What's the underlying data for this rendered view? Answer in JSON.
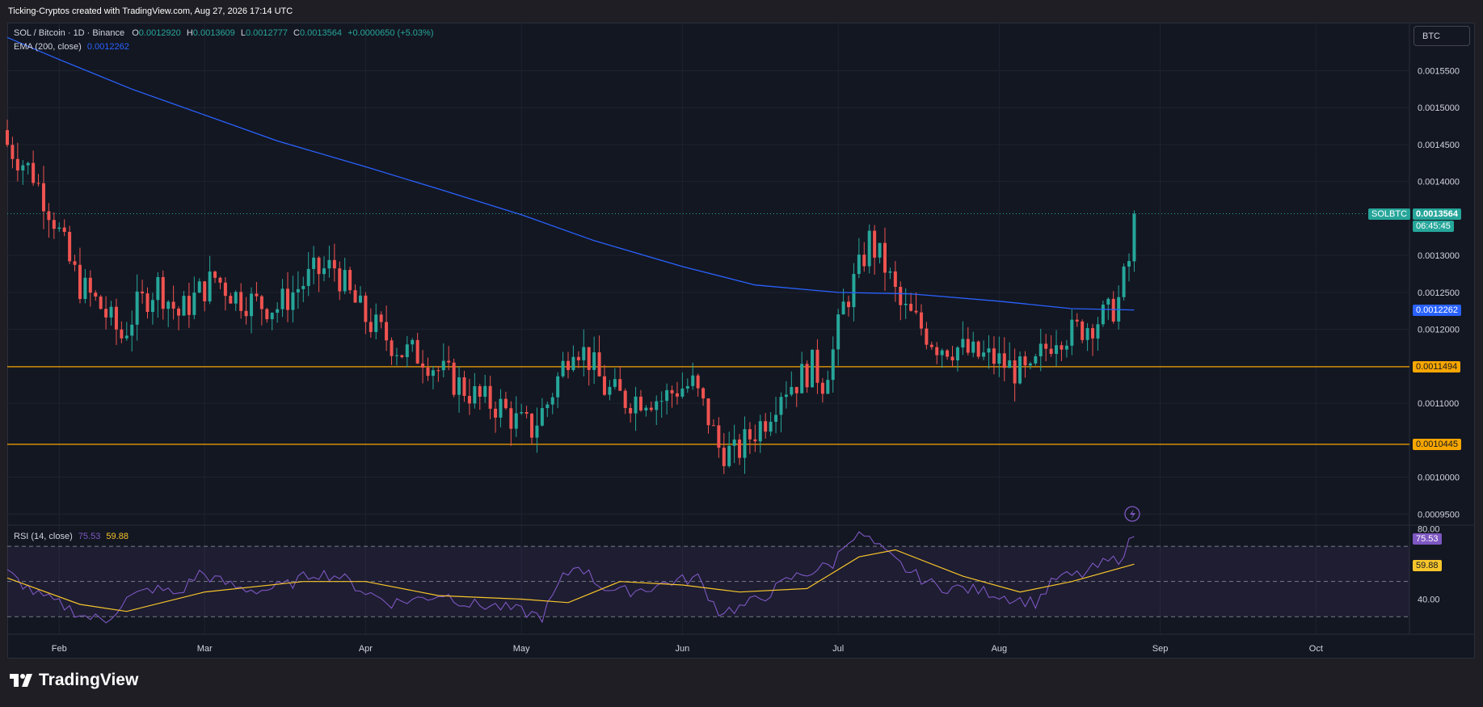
{
  "header": {
    "credit": "Ticking-Cryptos created with TradingView.com, Aug 27, 2026 17:14 UTC"
  },
  "legend": {
    "symbol": "SOL / Bitcoin · 1D · Binance",
    "o_label": "O",
    "o": "0.0012920",
    "h_label": "H",
    "h": "0.0013609",
    "l_label": "L",
    "l": "0.0012777",
    "c_label": "C",
    "c": "0.0013564",
    "change": "+0.0000650 (+5.03%)",
    "ema_label": "EMA (200, close)",
    "ema_value": "0.0012262",
    "rsi_label": "RSI (14, close)",
    "rsi_value": "75.53",
    "rsi_ma_value": "59.88"
  },
  "currency_button": "BTC",
  "brand": "TradingView",
  "tags": {
    "symbol": "SOLBTC",
    "price": "0.0013564",
    "countdown": "06:45:45",
    "ema": "0.0012262",
    "level_upper": "0.0011494",
    "level_lower": "0.0010445",
    "rsi": "75.53",
    "rsi_ma": "59.88"
  },
  "colors": {
    "up": "#26a69a",
    "down": "#ef5350",
    "ema": "#2962ff",
    "level": "#f7a600",
    "rsi": "#7e57c2",
    "rsi_ma": "#f7c52b"
  },
  "chart_data": [
    {
      "type": "candlestick",
      "title": "SOL / Bitcoin · 1D · Binance",
      "x_tick_labels": [
        "Feb",
        "Mar",
        "Apr",
        "May",
        "Jun",
        "Jul",
        "Aug",
        "Sep",
        "Oct"
      ],
      "y_tick_labels": [
        "0.0015500",
        "0.0015000",
        "0.0014500",
        "0.0014000",
        "0.0013000",
        "0.0012500",
        "0.0012000",
        "0.0011000",
        "0.0010000",
        "0.0009500"
      ],
      "ylim": [
        0.000935,
        0.001615
      ],
      "xlim": [
        "2026-01-22",
        "2026-10-19"
      ],
      "grid": true,
      "horizontal_levels": [
        0.0011494,
        0.0010445
      ],
      "series": [
        {
          "name": "SOLBTC",
          "ohlc_points": [
            [
              "2026-01-22",
              0.00145
            ],
            [
              "2026-01-27",
              0.00141
            ],
            [
              "2026-01-31",
              0.00135
            ],
            [
              "2026-02-03",
              0.00129
            ],
            [
              "2026-02-05",
              0.00126
            ],
            [
              "2026-02-09",
              0.00123
            ],
            [
              "2026-02-13",
              0.00119
            ],
            [
              "2026-02-16",
              0.00123
            ],
            [
              "2026-02-20",
              0.00126
            ],
            [
              "2026-02-24",
              0.00122
            ],
            [
              "2026-02-28",
              0.00125
            ],
            [
              "2026-03-03",
              0.00127
            ],
            [
              "2026-03-07",
              0.001245
            ],
            [
              "2026-03-11",
              0.001235
            ],
            [
              "2026-03-15",
              0.00123
            ],
            [
              "2026-03-18",
              0.00125
            ],
            [
              "2026-03-22",
              0.001275
            ],
            [
              "2026-03-26",
              0.001285
            ],
            [
              "2026-03-29",
              0.001245
            ],
            [
              "2026-04-01",
              0.001215
            ],
            [
              "2026-04-04",
              0.001195
            ],
            [
              "2026-04-08",
              0.00117
            ],
            [
              "2026-04-12",
              0.001165
            ],
            [
              "2026-04-15",
              0.001145
            ],
            [
              "2026-04-19",
              0.001125
            ],
            [
              "2026-04-23",
              0.001105
            ],
            [
              "2026-04-27",
              0.001095
            ],
            [
              "2026-04-30",
              0.001075
            ],
            [
              "2026-05-03",
              0.001065
            ],
            [
              "2026-05-06",
              0.0011
            ],
            [
              "2026-05-09",
              0.00115
            ],
            [
              "2026-05-11",
              0.001185
            ],
            [
              "2026-05-14",
              0.00116
            ],
            [
              "2026-05-17",
              0.00112
            ],
            [
              "2026-05-21",
              0.001105
            ],
            [
              "2026-05-25",
              0.00111
            ],
            [
              "2026-05-28",
              0.001105
            ],
            [
              "2026-05-31",
              0.00112
            ],
            [
              "2026-06-03",
              0.001125
            ],
            [
              "2026-06-06",
              0.00108
            ],
            [
              "2026-06-08",
              0.00104
            ],
            [
              "2026-06-11",
              0.00103
            ],
            [
              "2026-06-14",
              0.001055
            ],
            [
              "2026-06-17",
              0.00108
            ],
            [
              "2026-06-20",
              0.00112
            ],
            [
              "2026-06-23",
              0.00113
            ],
            [
              "2026-06-26",
              0.00115
            ],
            [
              "2026-06-28",
              0.00113
            ],
            [
              "2026-06-30",
              0.00117
            ],
            [
              "2026-07-02",
              0.00123
            ],
            [
              "2026-07-05",
              0.00128
            ],
            [
              "2026-07-07",
              0.00132
            ],
            [
              "2026-07-10",
              0.001285
            ],
            [
              "2026-07-13",
              0.00123
            ],
            [
              "2026-07-16",
              0.00121
            ],
            [
              "2026-07-20",
              0.00118
            ],
            [
              "2026-07-24",
              0.001175
            ],
            [
              "2026-07-27",
              0.001165
            ],
            [
              "2026-07-31",
              0.00116
            ],
            [
              "2026-08-04",
              0.001145
            ],
            [
              "2026-08-07",
              0.001135
            ],
            [
              "2026-08-09",
              0.001165
            ],
            [
              "2026-08-12",
              0.001195
            ],
            [
              "2026-08-15",
              0.001195
            ],
            [
              "2026-08-19",
              0.00121
            ],
            [
              "2026-08-22",
              0.00122
            ],
            [
              "2026-08-24",
              0.00124
            ],
            [
              "2026-08-26",
              0.001292
            ],
            [
              "2026-08-27",
              0.0013564
            ]
          ]
        },
        {
          "name": "EMA (200, close)",
          "points": [
            [
              "2026-01-22",
              0.001595
            ],
            [
              "2026-02-01",
              0.001565
            ],
            [
              "2026-02-15",
              0.001525
            ],
            [
              "2026-03-01",
              0.00149
            ],
            [
              "2026-03-15",
              0.001455
            ],
            [
              "2026-04-01",
              0.00142
            ],
            [
              "2026-04-15",
              0.00139
            ],
            [
              "2026-05-01",
              0.001355
            ],
            [
              "2026-05-15",
              0.00132
            ],
            [
              "2026-06-01",
              0.001285
            ],
            [
              "2026-06-15",
              0.00126
            ],
            [
              "2026-07-01",
              0.00125
            ],
            [
              "2026-07-15",
              0.001248
            ],
            [
              "2026-08-01",
              0.001238
            ],
            [
              "2026-08-15",
              0.001228
            ],
            [
              "2026-08-27",
              0.0012262
            ]
          ]
        }
      ]
    },
    {
      "type": "line",
      "title": "RSI (14, close)",
      "y_tick_labels": [
        "80.00",
        "40.00"
      ],
      "ylim": [
        20,
        82
      ],
      "reference_lines": [
        70,
        50,
        30
      ],
      "series": [
        {
          "name": "RSI",
          "points": [
            [
              "2026-01-22",
              55
            ],
            [
              "2026-01-28",
              42
            ],
            [
              "2026-02-02",
              36
            ],
            [
              "2026-02-06",
              30
            ],
            [
              "2026-02-10",
              28
            ],
            [
              "2026-02-14",
              40
            ],
            [
              "2026-02-19",
              46
            ],
            [
              "2026-02-24",
              43
            ],
            [
              "2026-02-28",
              55
            ],
            [
              "2026-03-04",
              50
            ],
            [
              "2026-03-08",
              46
            ],
            [
              "2026-03-12",
              45
            ],
            [
              "2026-03-17",
              48
            ],
            [
              "2026-03-22",
              55
            ],
            [
              "2026-03-27",
              53
            ],
            [
              "2026-04-01",
              44
            ],
            [
              "2026-04-06",
              38
            ],
            [
              "2026-04-11",
              40
            ],
            [
              "2026-04-16",
              43
            ],
            [
              "2026-04-21",
              37
            ],
            [
              "2026-04-26",
              36
            ],
            [
              "2026-05-01",
              33
            ],
            [
              "2026-05-05",
              30
            ],
            [
              "2026-05-09",
              52
            ],
            [
              "2026-05-12",
              60
            ],
            [
              "2026-05-16",
              48
            ],
            [
              "2026-05-20",
              44
            ],
            [
              "2026-05-25",
              46
            ],
            [
              "2026-05-30",
              50
            ],
            [
              "2026-06-04",
              52
            ],
            [
              "2026-06-08",
              33
            ],
            [
              "2026-06-12",
              35
            ],
            [
              "2026-06-17",
              42
            ],
            [
              "2026-06-22",
              52
            ],
            [
              "2026-06-26",
              56
            ],
            [
              "2026-06-30",
              60
            ],
            [
              "2026-07-03",
              75
            ],
            [
              "2026-07-06",
              76
            ],
            [
              "2026-07-10",
              66
            ],
            [
              "2026-07-15",
              55
            ],
            [
              "2026-07-20",
              47
            ],
            [
              "2026-07-25",
              46
            ],
            [
              "2026-07-30",
              44
            ],
            [
              "2026-08-04",
              40
            ],
            [
              "2026-08-08",
              38
            ],
            [
              "2026-08-12",
              52
            ],
            [
              "2026-08-17",
              54
            ],
            [
              "2026-08-21",
              60
            ],
            [
              "2026-08-24",
              63
            ],
            [
              "2026-08-27",
              75.53
            ]
          ]
        },
        {
          "name": "RSI-based MA",
          "points": [
            [
              "2026-01-22",
              52
            ],
            [
              "2026-02-05",
              37
            ],
            [
              "2026-02-14",
              33
            ],
            [
              "2026-03-01",
              44
            ],
            [
              "2026-03-20",
              50
            ],
            [
              "2026-04-01",
              50
            ],
            [
              "2026-04-15",
              42
            ],
            [
              "2026-05-01",
              40
            ],
            [
              "2026-05-10",
              38
            ],
            [
              "2026-05-20",
              50
            ],
            [
              "2026-06-01",
              48
            ],
            [
              "2026-06-12",
              44
            ],
            [
              "2026-06-25",
              46
            ],
            [
              "2026-07-05",
              64
            ],
            [
              "2026-07-12",
              68
            ],
            [
              "2026-07-25",
              53
            ],
            [
              "2026-08-05",
              44
            ],
            [
              "2026-08-15",
              50
            ],
            [
              "2026-08-27",
              59.88
            ]
          ]
        }
      ]
    }
  ]
}
